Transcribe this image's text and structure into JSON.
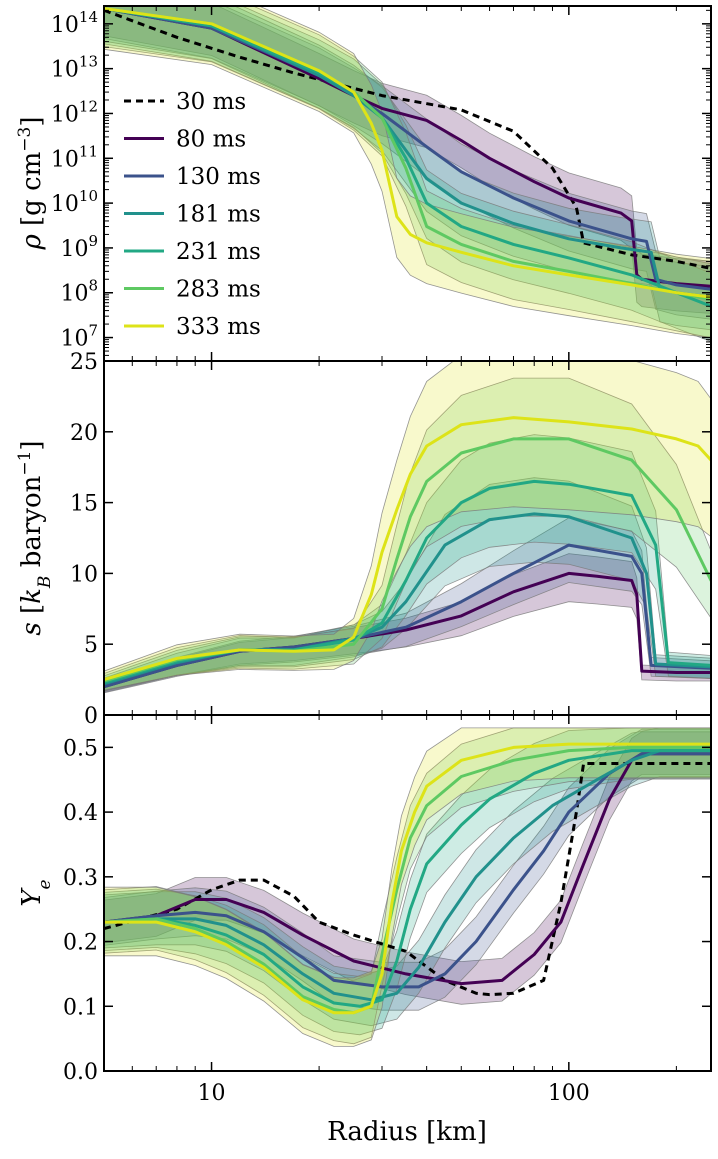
{
  "chart_data": {
    "type": "line",
    "xlabel": "Radius [km]",
    "xscale": "log",
    "xlim": [
      5,
      250
    ],
    "xticks": [
      10,
      100
    ],
    "xtick_labels": [
      "10",
      "100"
    ],
    "series_names": [
      "30 ms",
      "80 ms",
      "130 ms",
      "181 ms",
      "231 ms",
      "283 ms",
      "333 ms"
    ],
    "series_colors": [
      "#000000",
      "#440154",
      "#3b528b",
      "#21918c",
      "#22a884",
      "#5ec962",
      "#dde318"
    ],
    "series_styles": [
      "dashed",
      "solid",
      "solid",
      "solid",
      "solid",
      "solid",
      "solid"
    ],
    "legend": {
      "location": "upper-left",
      "panel": "rho"
    },
    "panels": [
      {
        "key": "rho",
        "ylabel": "ρ [g cm⁻³]",
        "yscale": "log",
        "ylim": [
          3000000.0,
          250000000000000.0
        ],
        "yticks": [
          10000000.0,
          100000000.0,
          1000000000.0,
          10000000000.0,
          100000000000.0,
          1000000000000.0,
          10000000000000.0,
          100000000000000.0
        ],
        "ytick_labels": [
          {
            "base": "10",
            "exp": "7"
          },
          {
            "base": "10",
            "exp": "8"
          },
          {
            "base": "10",
            "exp": "9"
          },
          {
            "base": "10",
            "exp": "10"
          },
          {
            "base": "10",
            "exp": "11"
          },
          {
            "base": "10",
            "exp": "12"
          },
          {
            "base": "10",
            "exp": "13"
          },
          {
            "base": "10",
            "exp": "14"
          }
        ],
        "series": [
          {
            "name": "30 ms",
            "x": [
              5,
              8,
              12,
              17,
              30,
              50,
              70,
              90,
              105,
              110,
              150,
              200,
              250
            ],
            "y": [
              200000000000000.0,
              50000000000000.0,
              18000000000000.0,
              8000000000000.0,
              2500000000000.0,
              1200000000000.0,
              400000000000.0,
              60000000000.0,
              8000000000.0,
              1300000000.0,
              700000000.0,
              500000000.0,
              350000000.0
            ]
          },
          {
            "name": "80 ms",
            "x": [
              5,
              10,
              20,
              25,
              30,
              40,
              50,
              60,
              80,
              100,
              140,
              150,
              155,
              160,
              200,
              250
            ],
            "y": [
              220000000000000.0,
              80000000000000.0,
              6000000000000.0,
              2500000000000.0,
              1300000000000.0,
              700000000000.0,
              250000000000.0,
              100000000000.0,
              30000000000.0,
              13000000000.0,
              6000000000.0,
              4000000000.0,
              250000000.0,
              200000000.0,
              160000000.0,
              140000000.0
            ]
          },
          {
            "name": "130 ms",
            "x": [
              5,
              10,
              20,
              25,
              30,
              40,
              50,
              70,
              100,
              150,
              165,
              175,
              200,
              250
            ],
            "y": [
              220000000000000.0,
              80000000000000.0,
              7000000000000.0,
              2500000000000.0,
              1000000000000.0,
              180000000000.0,
              50000000000.0,
              13000000000.0,
              4000000000.0,
              1600000000.0,
              1400000000.0,
              200000000.0,
              150000000.0,
              120000000.0
            ]
          },
          {
            "name": "181 ms",
            "x": [
              5,
              10,
              20,
              25,
              30,
              35,
              40,
              50,
              70,
              100,
              140,
              170,
              180,
              200,
              250
            ],
            "y": [
              220000000000000.0,
              90000000000000.0,
              7000000000000.0,
              2500000000000.0,
              800000000000.0,
              150000000000.0,
              35000000000.0,
              10000000000.0,
              3500000000.0,
              1600000000.0,
              1000000000.0,
              800000000.0,
              120000000.0,
              100000000.0,
              80000000.0
            ]
          },
          {
            "name": "231 ms",
            "x": [
              5,
              10,
              20,
              25,
              30,
              35,
              40,
              50,
              70,
              100,
              150,
              200,
              250
            ],
            "y": [
              220000000000000.0,
              90000000000000.0,
              8000000000000.0,
              3000000000000.0,
              800000000000.0,
              100000000000.0,
              10000000000.0,
              3000000000.0,
              1200000000.0,
              600000000.0,
              250000000.0,
              100000000.0,
              50000000.0
            ]
          },
          {
            "name": "283 ms",
            "x": [
              5,
              10,
              20,
              25,
              30,
              35,
              40,
              50,
              70,
              100,
              150,
              200,
              250
            ],
            "y": [
              220000000000000.0,
              100000000000000.0,
              9000000000000.0,
              3000000000000.0,
              800000000000.0,
              60000000000.0,
              3000000000.0,
              1200000000.0,
              500000000.0,
              300000000.0,
              160000000.0,
              100000000.0,
              70000000.0
            ]
          },
          {
            "name": "333 ms",
            "x": [
              5,
              10,
              20,
              25,
              28,
              30,
              33,
              36,
              40,
              50,
              70,
              100,
              150,
              200,
              250
            ],
            "y": [
              220000000000000.0,
              100000000000000.0,
              9000000000000.0,
              3000000000000.0,
              600000000000.0,
              150000000000.0,
              5000000000.0,
              2000000000.0,
              1300000000.0,
              800000000.0,
              400000000.0,
              250000000.0,
              150000000.0,
              100000000.0,
              80000000.0
            ]
          }
        ]
      },
      {
        "key": "s",
        "ylabel": "s [k_B baryon⁻¹]",
        "yscale": "linear",
        "ylim": [
          0,
          25
        ],
        "yticks": [
          0,
          5,
          10,
          15,
          20,
          25
        ],
        "ytick_labels": [
          "0",
          "5",
          "10",
          "15",
          "20",
          "25"
        ],
        "series": [
          {
            "name": "80 ms",
            "x": [
              5,
              8,
              12,
              17,
              25,
              35,
              50,
              70,
              100,
              120,
              150,
              155,
              160,
              200,
              250
            ],
            "y": [
              2.0,
              3.5,
              4.5,
              4.8,
              5.4,
              6.0,
              7.0,
              8.7,
              10.0,
              9.8,
              9.5,
              8.5,
              3.1,
              3.0,
              3.0
            ]
          },
          {
            "name": "130 ms",
            "x": [
              5,
              8,
              12,
              17,
              25,
              35,
              50,
              70,
              100,
              150,
              160,
              170,
              250
            ],
            "y": [
              2.0,
              3.5,
              4.5,
              4.8,
              5.4,
              6.2,
              8.0,
              10.0,
              12.0,
              11.2,
              10.0,
              3.5,
              3.3
            ]
          },
          {
            "name": "181 ms",
            "x": [
              5,
              8,
              12,
              17,
              25,
              30,
              35,
              45,
              60,
              80,
              100,
              150,
              165,
              175,
              250
            ],
            "y": [
              2.2,
              3.7,
              4.6,
              4.6,
              5.4,
              6.2,
              8.0,
              12.0,
              13.8,
              14.2,
              14.0,
              12.5,
              10.0,
              3.6,
              3.4
            ]
          },
          {
            "name": "231 ms",
            "x": [
              5,
              8,
              12,
              17,
              25,
              30,
              35,
              40,
              50,
              60,
              80,
              100,
              150,
              175,
              190,
              250
            ],
            "y": [
              2.3,
              3.8,
              4.6,
              4.6,
              5.3,
              6.5,
              9.5,
              12.5,
              15.0,
              16.0,
              16.5,
              16.3,
              15.5,
              12.0,
              3.7,
              3.5
            ]
          },
          {
            "name": "283 ms",
            "x": [
              5,
              8,
              12,
              17,
              25,
              30,
              33,
              36,
              40,
              50,
              70,
              100,
              150,
              200,
              250
            ],
            "y": [
              2.4,
              3.9,
              4.6,
              4.5,
              5.0,
              7.5,
              11.0,
              14.0,
              16.5,
              18.5,
              19.5,
              19.5,
              18.0,
              14.5,
              9.5
            ]
          },
          {
            "name": "333 ms",
            "x": [
              5,
              8,
              12,
              17,
              22,
              25,
              28,
              30,
              33,
              36,
              40,
              50,
              70,
              100,
              150,
              200,
              230,
              250
            ],
            "y": [
              2.5,
              4.0,
              4.6,
              4.5,
              4.6,
              5.5,
              8.5,
              11.5,
              14.5,
              17.0,
              19.0,
              20.5,
              21.0,
              20.7,
              20.2,
              19.5,
              19.0,
              18.0
            ]
          }
        ]
      },
      {
        "key": "ye",
        "ylabel": "Y_e",
        "yscale": "linear",
        "ylim": [
          0,
          0.55
        ],
        "yticks": [
          0.0,
          0.1,
          0.2,
          0.3,
          0.4,
          0.5
        ],
        "ytick_labels": [
          "0.0",
          "0.1",
          "0.2",
          "0.3",
          "0.4",
          "0.5"
        ],
        "series": [
          {
            "name": "30 ms",
            "x": [
              5,
              8,
              10,
              12,
              14,
              17,
              20,
              25,
              35,
              45,
              55,
              60,
              70,
              85,
              95,
              105,
              110,
              150,
              200,
              250
            ],
            "y": [
              0.22,
              0.25,
              0.28,
              0.295,
              0.295,
              0.27,
              0.23,
              0.21,
              0.185,
              0.14,
              0.12,
              0.118,
              0.12,
              0.14,
              0.26,
              0.4,
              0.475,
              0.475,
              0.475,
              0.475
            ]
          },
          {
            "name": "80 ms",
            "x": [
              5,
              7,
              9,
              11,
              14,
              18,
              25,
              35,
              50,
              65,
              80,
              95,
              110,
              130,
              150,
              160,
              200,
              250
            ],
            "y": [
              0.23,
              0.24,
              0.265,
              0.265,
              0.245,
              0.21,
              0.17,
              0.15,
              0.135,
              0.14,
              0.18,
              0.23,
              0.32,
              0.42,
              0.48,
              0.49,
              0.49,
              0.49
            ]
          },
          {
            "name": "130 ms",
            "x": [
              5,
              7,
              9,
              11,
              14,
              18,
              22,
              30,
              38,
              45,
              55,
              70,
              85,
              100,
              130,
              160,
              200,
              250
            ],
            "y": [
              0.23,
              0.24,
              0.245,
              0.24,
              0.215,
              0.175,
              0.14,
              0.13,
              0.13,
              0.15,
              0.2,
              0.28,
              0.34,
              0.4,
              0.46,
              0.49,
              0.49,
              0.49
            ]
          },
          {
            "name": "181 ms",
            "x": [
              5,
              7,
              9,
              11,
              14,
              18,
              22,
              28,
              33,
              38,
              45,
              55,
              70,
              90,
              120,
              150,
              180,
              250
            ],
            "y": [
              0.23,
              0.235,
              0.235,
              0.225,
              0.195,
              0.15,
              0.12,
              0.11,
              0.12,
              0.16,
              0.23,
              0.3,
              0.36,
              0.41,
              0.45,
              0.48,
              0.495,
              0.495
            ]
          },
          {
            "name": "231 ms",
            "x": [
              5,
              7,
              9,
              11,
              14,
              18,
              22,
              26,
              30,
              33,
              36,
              40,
              50,
              60,
              80,
              100,
              150,
              200,
              250
            ],
            "y": [
              0.23,
              0.235,
              0.225,
              0.21,
              0.18,
              0.13,
              0.105,
              0.1,
              0.11,
              0.17,
              0.25,
              0.32,
              0.38,
              0.42,
              0.46,
              0.48,
              0.495,
              0.495,
              0.495
            ]
          },
          {
            "name": "283 ms",
            "x": [
              5,
              7,
              9,
              11,
              14,
              18,
              22,
              25,
              28,
              30,
              33,
              36,
              40,
              50,
              70,
              100,
              150,
              250
            ],
            "y": [
              0.23,
              0.235,
              0.22,
              0.2,
              0.165,
              0.115,
              0.095,
              0.09,
              0.1,
              0.18,
              0.28,
              0.36,
              0.41,
              0.455,
              0.48,
              0.495,
              0.5,
              0.5
            ]
          },
          {
            "name": "333 ms",
            "x": [
              5,
              7,
              9,
              11,
              14,
              18,
              22,
              25,
              28,
              30,
              32,
              34,
              37,
              40,
              50,
              70,
              100,
              150,
              250
            ],
            "y": [
              0.23,
              0.23,
              0.215,
              0.195,
              0.16,
              0.11,
              0.09,
              0.09,
              0.1,
              0.15,
              0.26,
              0.34,
              0.4,
              0.44,
              0.48,
              0.5,
              0.505,
              0.505,
              0.505
            ]
          }
        ]
      }
    ]
  }
}
